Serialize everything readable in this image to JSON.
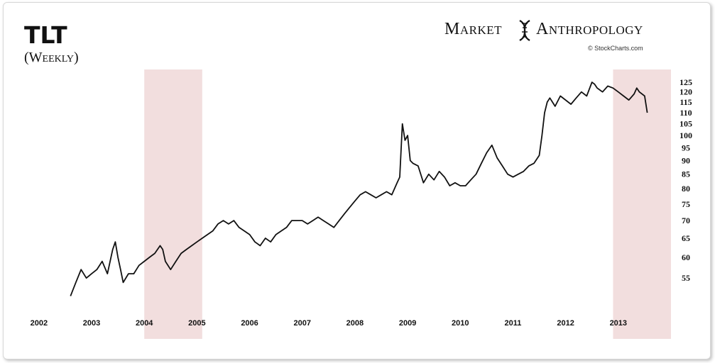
{
  "header": {
    "title": "TLT",
    "subtitle": "(Weekly)",
    "brand_left": "Market",
    "brand_right": "Anthropology",
    "credit": "© StockCharts.com"
  },
  "colors": {
    "line": "#111111",
    "shade": "#f2dede",
    "background": "#ffffff"
  },
  "chart_data": {
    "type": "line",
    "series": [
      {
        "x": [
          2002.6,
          2002.7,
          2002.8,
          2002.9,
          2003.0,
          2003.1,
          2003.2,
          2003.3,
          2003.4,
          2003.45,
          2003.5,
          2003.55,
          2003.6,
          2003.7,
          2003.8,
          2003.9,
          2004.0,
          2004.1,
          2004.2,
          2004.3,
          2004.35,
          2004.4,
          2004.5,
          2004.6,
          2004.7,
          2004.8,
          2004.9,
          2005.0,
          2005.1,
          2005.2,
          2005.3,
          2005.4,
          2005.5,
          2005.6,
          2005.7,
          2005.8,
          2005.9,
          2006.0,
          2006.1,
          2006.2,
          2006.3,
          2006.4,
          2006.5,
          2006.6,
          2006.7,
          2006.8,
          2006.9,
          2007.0,
          2007.1,
          2007.2,
          2007.3,
          2007.4,
          2007.5,
          2007.6,
          2007.7,
          2007.8,
          2007.9,
          2008.0,
          2008.1,
          2008.2,
          2008.3,
          2008.4,
          2008.5,
          2008.6,
          2008.7,
          2008.8,
          2008.85,
          2008.9,
          2008.95,
          2009.0,
          2009.05,
          2009.1,
          2009.2,
          2009.3,
          2009.4,
          2009.5,
          2009.6,
          2009.7,
          2009.8,
          2009.9,
          2010.0,
          2010.1,
          2010.2,
          2010.3,
          2010.4,
          2010.5,
          2010.6,
          2010.7,
          2010.8,
          2010.9,
          2011.0,
          2011.1,
          2011.2,
          2011.3,
          2011.4,
          2011.5,
          2011.55,
          2011.6,
          2011.65,
          2011.7,
          2011.8,
          2011.9,
          2012.0,
          2012.1,
          2012.2,
          2012.3,
          2012.4,
          2012.5,
          2012.55,
          2012.6,
          2012.7,
          2012.8,
          2012.9,
          2013.0,
          2013.1,
          2013.2,
          2013.3,
          2013.35,
          2013.4,
          2013.5,
          2013.55
        ],
        "y": [
          51,
          54,
          57,
          55,
          56,
          57,
          59,
          56,
          62,
          64,
          60,
          57,
          54,
          56,
          56,
          58,
          59,
          60,
          61,
          63,
          62,
          59,
          57,
          59,
          61,
          62,
          63,
          64,
          65,
          66,
          67,
          69,
          70,
          69,
          70,
          68,
          67,
          66,
          64,
          63,
          65,
          64,
          66,
          67,
          68,
          70,
          70,
          70,
          69,
          70,
          71,
          70,
          69,
          68,
          70,
          72,
          74,
          76,
          78,
          79,
          78,
          77,
          78,
          79,
          78,
          82,
          84,
          105,
          98,
          100,
          90,
          89,
          88,
          82,
          85,
          83,
          86,
          84,
          81,
          82,
          81,
          81,
          83,
          85,
          89,
          93,
          96,
          91,
          88,
          85,
          84,
          85,
          86,
          88,
          89,
          92,
          100,
          110,
          115,
          117,
          113,
          118,
          116,
          114,
          117,
          120,
          118,
          125,
          124,
          122,
          120,
          123,
          122,
          120,
          118,
          116,
          119,
          122,
          120,
          118,
          110
        ]
      }
    ],
    "shaded_regions": [
      [
        2004.0,
        2005.1
      ],
      [
        2012.9,
        2014.0
      ]
    ],
    "x_ticks": [
      "2002",
      "2003",
      "2004",
      "2005",
      "2006",
      "2007",
      "2008",
      "2009",
      "2010",
      "2011",
      "2012",
      "2013"
    ],
    "y_ticks": [
      125,
      120,
      115,
      110,
      105,
      100,
      95,
      90,
      85,
      80,
      75,
      70,
      65,
      60,
      55
    ],
    "xlim": [
      2001.8,
      2014.0
    ],
    "ylim": [
      48,
      128
    ],
    "y_scale": "log",
    "grid": false
  }
}
